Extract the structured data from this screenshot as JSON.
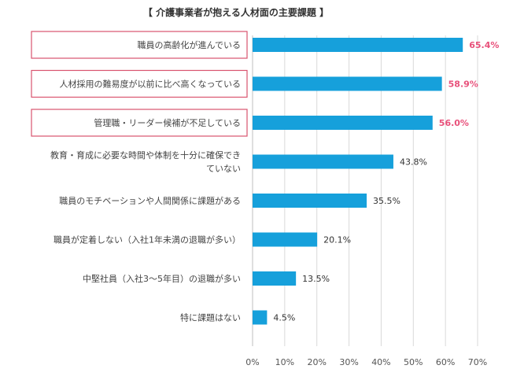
{
  "chart_data": {
    "type": "bar",
    "orientation": "horizontal",
    "title": "【 介護事業者が抱える人材面の主要課題 】",
    "categories": [
      [
        "職員の高齢化が進んでいる"
      ],
      [
        "人材採用の難易度が以前に比べ高くなっている"
      ],
      [
        "管理職・リーダー候補が不足している"
      ],
      [
        "教育・育成に必要な時間や体制を十分に確保でき",
        "ていない"
      ],
      [
        "職員のモチベーションや人間関係に課題がある"
      ],
      [
        "職員が定着しない（入社1年未満の退職が多い）"
      ],
      [
        "中堅社員（入社3〜5年目）の退職が多い"
      ],
      [
        "特に課題はない"
      ]
    ],
    "values": [
      65.4,
      58.9,
      56.0,
      43.8,
      35.5,
      20.1,
      13.5,
      4.5
    ],
    "value_labels": [
      "65.4%",
      "58.9%",
      "56.0%",
      "43.8%",
      "35.5%",
      "20.1%",
      "13.5%",
      "4.5%"
    ],
    "highlighted": [
      true,
      true,
      true,
      false,
      false,
      false,
      false,
      false
    ],
    "xlim": [
      0,
      70
    ],
    "ticks": [
      0,
      10,
      20,
      30,
      40,
      50,
      60,
      70
    ],
    "tick_labels": [
      "0%",
      "10%",
      "20%",
      "30%",
      "40%",
      "50%",
      "60%",
      "70%"
    ],
    "grid": true,
    "colors": {
      "bar": "#16a0db",
      "highlight": "#e8507a",
      "box": "#d9536f"
    }
  }
}
